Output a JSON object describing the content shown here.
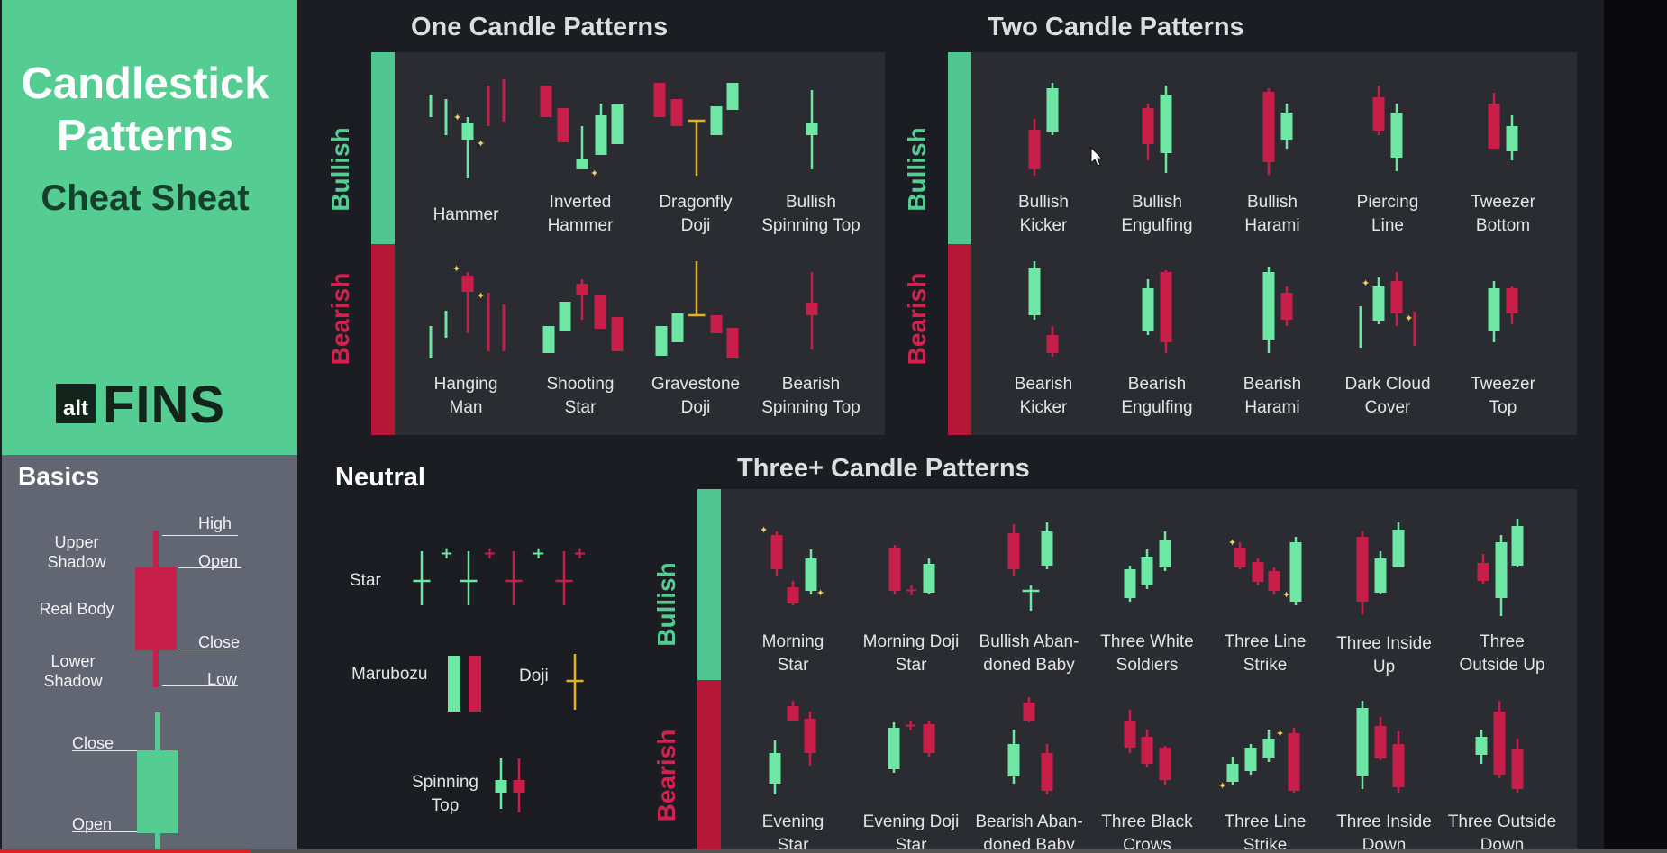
{
  "colors": {
    "bull": "#6ee6a4",
    "bear": "#c81e4a",
    "doji": "#e0b320",
    "spark": "#f0d060",
    "brand": "#55cd92",
    "bullbar": "#4fc690",
    "bearbar": "#b51837"
  },
  "header": {
    "title_line1": "Candlestick",
    "title_line2": "Patterns",
    "subtitle": "Cheat Sheat",
    "logo_alt": "alt",
    "logo_name": "FINS"
  },
  "basics": {
    "title": "Basics",
    "upper_shadow": "Upper\nShadow",
    "real_body": "Real Body",
    "lower_shadow": "Lower\nShadow",
    "high": "High",
    "open": "Open",
    "close": "Close",
    "low": "Low",
    "close2": "Close",
    "open2": "Open"
  },
  "sections": {
    "one": "One Candle Patterns",
    "two": "Two Candle Patterns",
    "neutral": "Neutral",
    "three": "Three+ Candle Patterns",
    "bullish": "Bullish",
    "bearish": "Bearish"
  },
  "one_bull": [
    "Hammer",
    "Inverted\nHammer",
    "Dragonfly\nDoji",
    "Bullish\nSpinning Top"
  ],
  "one_bear": [
    "Hanging\nMan",
    "Shooting\nStar",
    "Gravestone\nDoji",
    "Bearish\nSpinning Top"
  ],
  "two_bull": [
    "Bullish\nKicker",
    "Bullish\nEngulfing",
    "Bullish\nHarami",
    "Piercing\nLine",
    "Tweezer\nBottom"
  ],
  "two_bear": [
    "Bearish\nKicker",
    "Bearish\nEngulfing",
    "Bearish\nHarami",
    "Dark Cloud\nCover",
    "Tweezer\nTop"
  ],
  "neutral_items": {
    "star": "Star",
    "marubozu": "Marubozu",
    "doji": "Doji",
    "spinning_top": "Spinning\nTop"
  },
  "three_bull": [
    "Morning\nStar",
    "Morning Doji\nStar",
    "Bullish Aban-\ndoned Baby",
    "Three White\nSoldiers",
    "Three Line\nStrike",
    "Three Inside\nUp",
    "Three\nOutside Up"
  ],
  "three_bear": [
    "Evening\nStar",
    "Evening Doji\nStar",
    "Bearish Aban-\ndoned Baby",
    "Three Black\nCrows",
    "Three Line\nStrike",
    "Three Inside\nDown",
    "Three Outside\nDown"
  ],
  "video": {
    "progress": 0.15
  }
}
